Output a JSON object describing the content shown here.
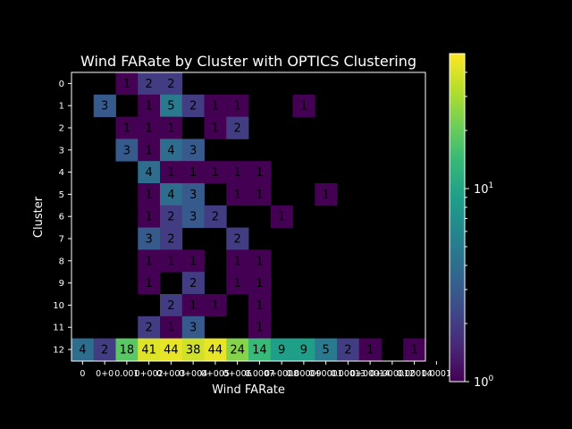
{
  "chart_data": {
    "type": "heatmap",
    "title": "Wind FARate by Cluster with OPTICS Clustering",
    "xlabel": "Wind FARate",
    "ylabel": "Cluster",
    "x_tick_labels": [
      "0",
      "0+0",
      "0.001",
      "0+002",
      "0+003",
      "0+004",
      "0+005",
      "0+006",
      "0.0007",
      "0+0008",
      "0.00009",
      "0+0001",
      "0.00013",
      "0+00014",
      "0+000012",
      "0.00014",
      "0.0001"
    ],
    "y_tick_labels": [
      "0",
      "1",
      "2",
      "3",
      "4",
      "5",
      "6",
      "7",
      "8",
      "9",
      "10",
      "11",
      "12"
    ],
    "colorbar": {
      "scale": "log",
      "range": [
        1,
        50
      ],
      "tick_labels": [
        {
          "value": 1,
          "base": "10",
          "exp": "0"
        },
        {
          "value": 10,
          "base": "10",
          "exp": "1"
        }
      ],
      "colormap": "viridis"
    },
    "background_color": "#000000",
    "cells": [
      [
        0,
        2,
        1
      ],
      [
        0,
        3,
        2
      ],
      [
        0,
        4,
        2
      ],
      [
        1,
        1,
        3
      ],
      [
        1,
        3,
        1
      ],
      [
        1,
        4,
        5
      ],
      [
        1,
        5,
        2
      ],
      [
        1,
        6,
        1
      ],
      [
        1,
        7,
        1
      ],
      [
        1,
        10,
        1
      ],
      [
        2,
        2,
        1
      ],
      [
        2,
        3,
        1
      ],
      [
        2,
        4,
        1
      ],
      [
        2,
        6,
        1
      ],
      [
        2,
        7,
        2
      ],
      [
        3,
        2,
        3
      ],
      [
        3,
        3,
        1
      ],
      [
        3,
        4,
        4
      ],
      [
        3,
        5,
        3
      ],
      [
        4,
        3,
        4
      ],
      [
        4,
        4,
        1
      ],
      [
        4,
        5,
        1
      ],
      [
        4,
        6,
        1
      ],
      [
        4,
        7,
        1
      ],
      [
        4,
        8,
        1
      ],
      [
        5,
        3,
        1
      ],
      [
        5,
        4,
        4
      ],
      [
        5,
        5,
        3
      ],
      [
        5,
        7,
        1
      ],
      [
        5,
        8,
        1
      ],
      [
        5,
        11,
        1
      ],
      [
        6,
        3,
        1
      ],
      [
        6,
        4,
        2
      ],
      [
        6,
        5,
        3
      ],
      [
        6,
        6,
        2
      ],
      [
        6,
        9,
        1
      ],
      [
        7,
        3,
        3
      ],
      [
        7,
        4,
        2
      ],
      [
        7,
        7,
        2
      ],
      [
        8,
        3,
        1
      ],
      [
        8,
        4,
        1
      ],
      [
        8,
        5,
        1
      ],
      [
        8,
        7,
        1
      ],
      [
        8,
        8,
        1
      ],
      [
        9,
        3,
        1
      ],
      [
        9,
        5,
        2
      ],
      [
        9,
        7,
        1
      ],
      [
        9,
        8,
        1
      ],
      [
        10,
        4,
        2
      ],
      [
        10,
        5,
        1
      ],
      [
        10,
        6,
        1
      ],
      [
        10,
        8,
        1
      ],
      [
        11,
        3,
        2
      ],
      [
        11,
        4,
        1
      ],
      [
        11,
        5,
        3
      ],
      [
        11,
        8,
        1
      ],
      [
        12,
        0,
        4
      ],
      [
        12,
        1,
        2
      ],
      [
        12,
        2,
        18
      ],
      [
        12,
        3,
        41
      ],
      [
        12,
        4,
        44
      ],
      [
        12,
        5,
        38
      ],
      [
        12,
        6,
        44
      ],
      [
        12,
        7,
        24
      ],
      [
        12,
        8,
        14
      ],
      [
        12,
        9,
        9
      ],
      [
        12,
        10,
        9
      ],
      [
        12,
        11,
        5
      ],
      [
        12,
        12,
        2
      ],
      [
        12,
        13,
        1
      ],
      [
        12,
        15,
        1
      ]
    ]
  }
}
